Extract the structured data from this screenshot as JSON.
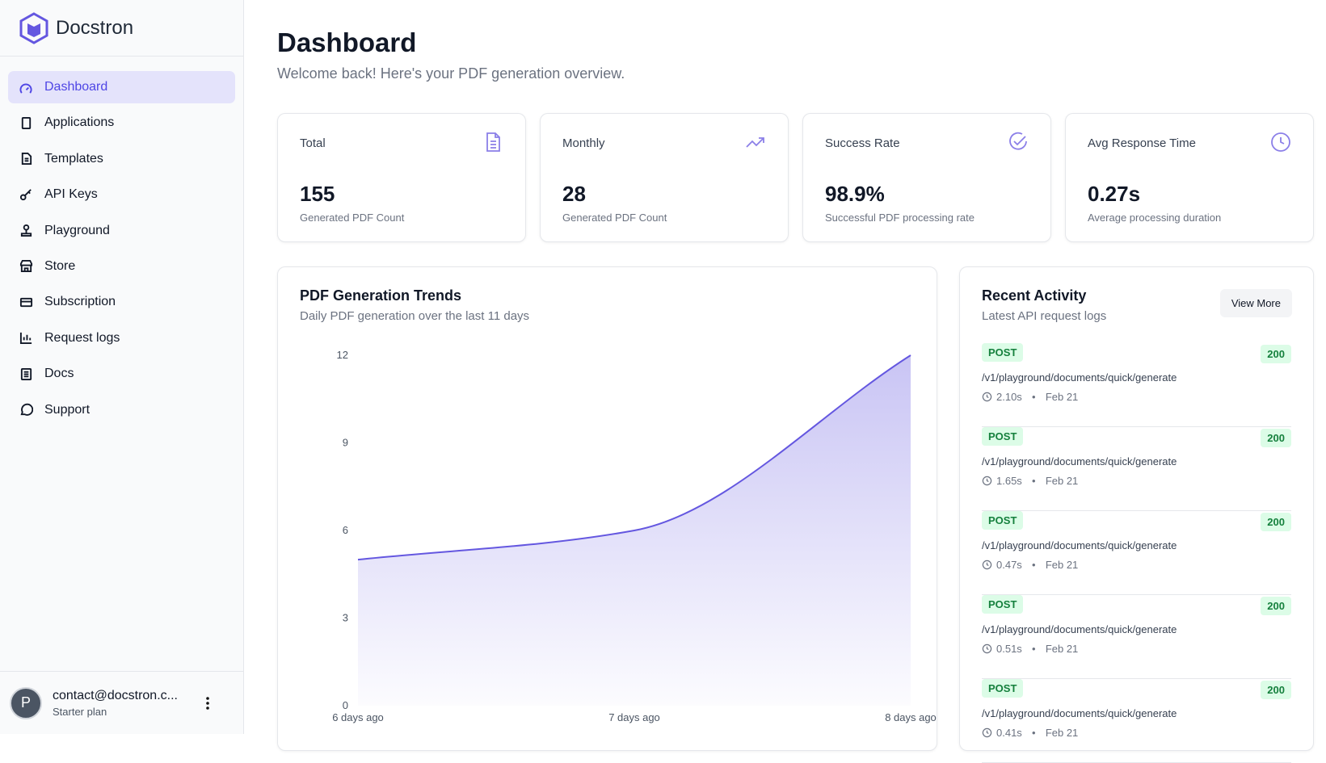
{
  "sidebar": {
    "brand": "Docstron",
    "nav": [
      "Dashboard",
      "Applications",
      "Templates",
      "API Keys",
      "Playground",
      "Store",
      "Subscription",
      "Request logs",
      "Docs",
      "Support"
    ],
    "user": {
      "avatar": "P",
      "email": "contact@docstron.c...",
      "plan": "Starter plan"
    }
  },
  "header": {
    "title": "Dashboard",
    "subtitle": "Welcome back! Here's your PDF generation overview."
  },
  "stats": [
    {
      "label": "Total",
      "value": "155",
      "caption": "Generated PDF Count"
    },
    {
      "label": "Monthly",
      "value": "28",
      "caption": "Generated PDF Count"
    },
    {
      "label": "Success Rate",
      "value": "98.9%",
      "caption": "Successful PDF processing rate"
    },
    {
      "label": "Avg Response Time",
      "value": "0.27s",
      "caption": "Average processing duration"
    }
  ],
  "chart": {
    "type": "area",
    "title": "PDF Generation Trends",
    "subtitle": "Daily PDF generation over the last 11 days",
    "categories": [
      "6 days ago",
      "7 days ago",
      "8 days ago"
    ],
    "values": [
      5,
      6,
      12
    ],
    "color": "#6457e0",
    "ylim": [
      0,
      12
    ],
    "yticks": [
      0,
      3,
      6,
      9,
      12
    ]
  },
  "activity": {
    "title": "Recent Activity",
    "subtitle": "Latest API request logs",
    "button": "View More",
    "items": [
      {
        "method": "POST",
        "path": "/v1/playground/documents/quick/generate",
        "duration": "2.10s",
        "date": "Feb 21",
        "status": "200"
      },
      {
        "method": "POST",
        "path": "/v1/playground/documents/quick/generate",
        "duration": "1.65s",
        "date": "Feb 21",
        "status": "200"
      },
      {
        "method": "POST",
        "path": "/v1/playground/documents/quick/generate",
        "duration": "0.47s",
        "date": "Feb 21",
        "status": "200"
      },
      {
        "method": "POST",
        "path": "/v1/playground/documents/quick/generate",
        "duration": "0.51s",
        "date": "Feb 21",
        "status": "200"
      },
      {
        "method": "POST",
        "path": "/v1/playground/documents/quick/generate",
        "duration": "0.41s",
        "date": "Feb 21",
        "status": "200"
      }
    ]
  }
}
